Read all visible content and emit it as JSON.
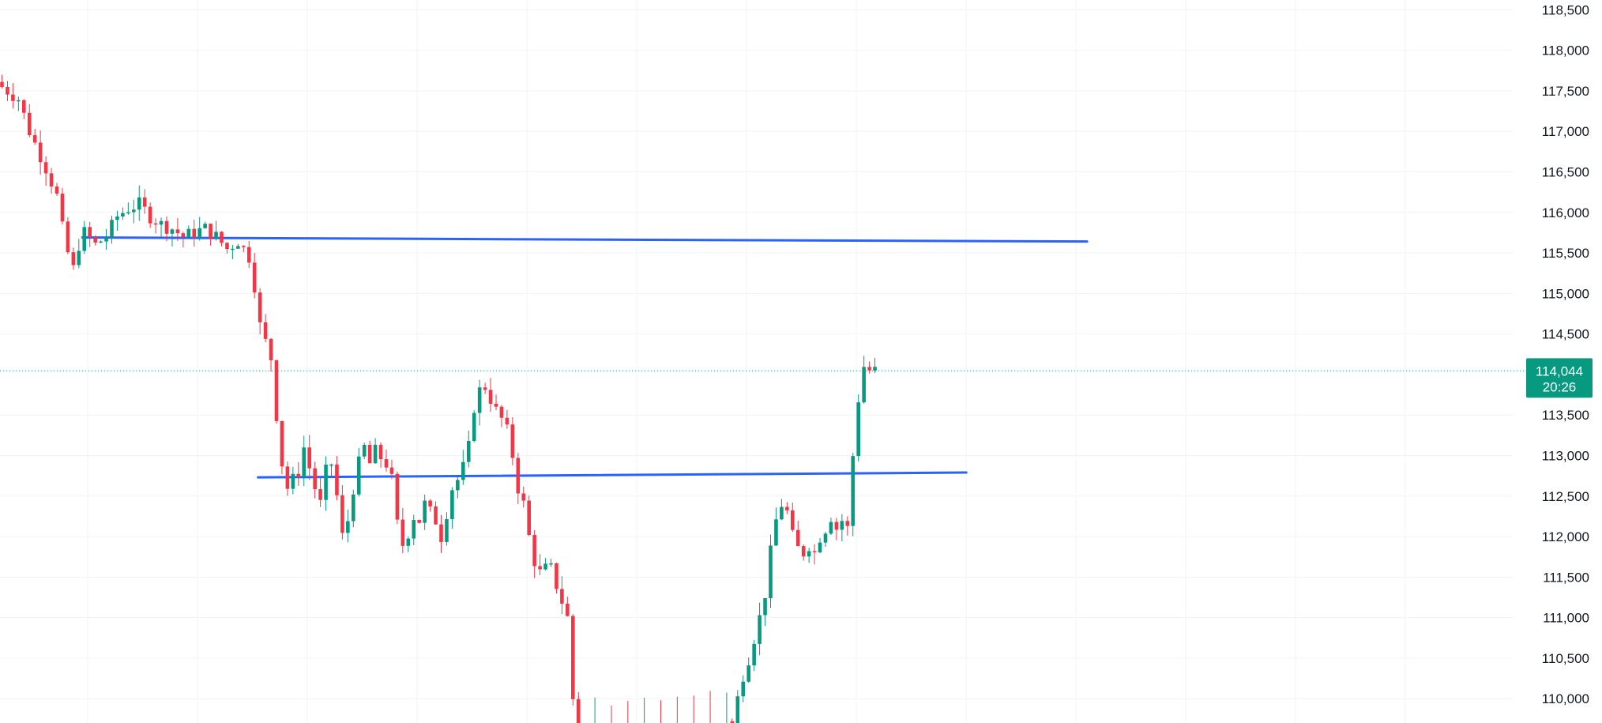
{
  "chart_data": {
    "type": "candlestick",
    "ylim": [
      109700,
      118620
    ],
    "x_count": 200,
    "y_ticks": [
      118500,
      118000,
      117500,
      117000,
      116500,
      116000,
      115500,
      115000,
      114500,
      113500,
      113000,
      112500,
      112000,
      111500,
      111000,
      110500,
      110000
    ],
    "y_tick_labels": [
      "118,500",
      "118,000",
      "117,500",
      "117,000",
      "116,500",
      "116,000",
      "115,500",
      "115,000",
      "114,500",
      "113,500",
      "113,000",
      "112,500",
      "112,000",
      "111,500",
      "111,000",
      "110,500",
      "110,000"
    ],
    "current_price": 114044,
    "current_price_label": "114,044",
    "countdown_label": "20:26",
    "horizontal_lines": [
      {
        "from_index": 15,
        "to_index": 198,
        "y_start": 115690,
        "y_end": 115640
      },
      {
        "from_index": 47,
        "to_index": 176,
        "y_start": 112730,
        "y_end": 112790
      }
    ],
    "close_path": [
      [
        0,
        117550
      ],
      [
        3,
        117400
      ],
      [
        5,
        117000
      ],
      [
        6,
        116850
      ],
      [
        8,
        116550
      ],
      [
        10,
        116200
      ],
      [
        11,
        115800
      ],
      [
        12,
        115500
      ],
      [
        13,
        115300
      ],
      [
        14,
        115600
      ],
      [
        15,
        115750
      ],
      [
        17,
        115600
      ],
      [
        19,
        115700
      ],
      [
        21,
        115950
      ],
      [
        23,
        116050
      ],
      [
        25,
        116100
      ],
      [
        27,
        115950
      ],
      [
        29,
        115850
      ],
      [
        31,
        115800
      ],
      [
        33,
        115700
      ],
      [
        35,
        115750
      ],
      [
        37,
        115800
      ],
      [
        39,
        115700
      ],
      [
        41,
        115550
      ],
      [
        43,
        115650
      ],
      [
        45,
        115450
      ],
      [
        46,
        115100
      ],
      [
        47,
        114600
      ],
      [
        48,
        114400
      ],
      [
        49,
        114200
      ],
      [
        50,
        113500
      ],
      [
        51,
        112900
      ],
      [
        52,
        112600
      ],
      [
        54,
        112800
      ],
      [
        55,
        113100
      ],
      [
        56,
        112850
      ],
      [
        57,
        112600
      ],
      [
        58,
        112400
      ],
      [
        59,
        112800
      ],
      [
        60,
        112900
      ],
      [
        61,
        112500
      ],
      [
        62,
        112000
      ],
      [
        63,
        112200
      ],
      [
        64,
        112600
      ],
      [
        65,
        112900
      ],
      [
        66,
        113100
      ],
      [
        67,
        112900
      ],
      [
        68,
        113050
      ],
      [
        70,
        112900
      ],
      [
        71,
        112700
      ],
      [
        72,
        112150
      ],
      [
        73,
        111900
      ],
      [
        74,
        112050
      ],
      [
        75,
        112250
      ],
      [
        76,
        112200
      ],
      [
        77,
        112400
      ],
      [
        78,
        112300
      ],
      [
        79,
        112200
      ],
      [
        80,
        112000
      ],
      [
        81,
        112300
      ],
      [
        82,
        112600
      ],
      [
        83,
        112700
      ],
      [
        84,
        112850
      ],
      [
        85,
        113100
      ],
      [
        86,
        113600
      ],
      [
        87,
        113800
      ],
      [
        88,
        113850
      ],
      [
        89,
        113700
      ],
      [
        90,
        113550
      ],
      [
        91,
        113450
      ],
      [
        92,
        113300
      ],
      [
        93,
        113000
      ],
      [
        94,
        112600
      ],
      [
        95,
        112400
      ],
      [
        96,
        112000
      ],
      [
        97,
        111700
      ],
      [
        98,
        111550
      ],
      [
        99,
        111600
      ],
      [
        100,
        111600
      ],
      [
        101,
        111400
      ],
      [
        102,
        111200
      ],
      [
        103,
        111000
      ],
      [
        104,
        110000
      ],
      [
        105,
        109500
      ]
    ],
    "offscreen_segment": {
      "from_index": 105,
      "to_index": 133,
      "level": 109600
    },
    "close_path_2": [
      [
        133,
        109650
      ],
      [
        134,
        110000
      ],
      [
        135,
        110300
      ],
      [
        136,
        110500
      ],
      [
        137,
        110750
      ],
      [
        138,
        111000
      ],
      [
        139,
        111300
      ],
      [
        140,
        111800
      ],
      [
        141,
        112200
      ],
      [
        142,
        112400
      ],
      [
        143,
        112300
      ],
      [
        144,
        112000
      ],
      [
        145,
        111850
      ],
      [
        146,
        111800
      ],
      [
        147,
        111900
      ],
      [
        148,
        111800
      ],
      [
        149,
        112000
      ],
      [
        150,
        112100
      ],
      [
        151,
        112250
      ],
      [
        152,
        112100
      ],
      [
        153,
        112200
      ],
      [
        154,
        112100
      ],
      [
        155,
        113000
      ],
      [
        156,
        113700
      ],
      [
        157,
        114100
      ],
      [
        158,
        114050
      ],
      [
        159,
        114044
      ]
    ]
  }
}
